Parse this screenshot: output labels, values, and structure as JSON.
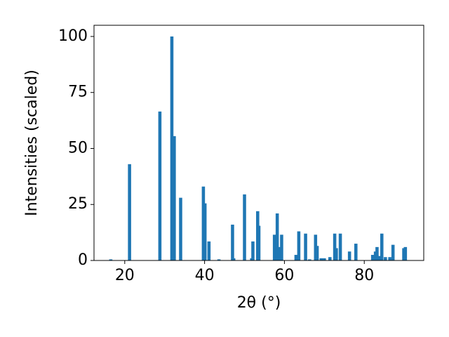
{
  "chart_data": {
    "type": "bar",
    "x": [
      16.5,
      21.2,
      28.8,
      31.8,
      32.4,
      34.0,
      39.7,
      40.1,
      41.1,
      43.6,
      47.0,
      47.3,
      50.0,
      51.8,
      52.1,
      53.3,
      53.6,
      57.5,
      58.2,
      58.6,
      59.3,
      62.9,
      63.6,
      65.3,
      66.3,
      67.8,
      68.2,
      69.2,
      70.0,
      71.4,
      72.6,
      73.0,
      74.0,
      76.3,
      77.9,
      82.1,
      82.8,
      83.2,
      83.7,
      84.4,
      85.3,
      86.4,
      87.2,
      89.9,
      90.3
    ],
    "values": [
      0.5,
      43,
      66.5,
      100,
      55.5,
      28,
      33,
      25.5,
      8.5,
      0.5,
      16,
      1,
      29.5,
      1,
      8.5,
      22,
      15.5,
      11.5,
      21,
      6,
      11.5,
      2.5,
      13,
      12,
      0.5,
      11.5,
      6.5,
      1,
      1,
      1.5,
      12,
      5.5,
      12,
      4,
      7.5,
      2.5,
      4,
      6,
      2,
      12,
      1.5,
      1.5,
      7,
      5.5,
      6
    ],
    "color": "#1f77b4",
    "xlabel": "2θ (°)",
    "ylabel": "Intensities (scaled)",
    "xlim": [
      12.3,
      94.9
    ],
    "xticks": [
      20,
      40,
      60,
      80
    ],
    "ylim": [
      0,
      105
    ],
    "yticks": [
      0,
      25,
      50,
      75,
      100
    ],
    "grid": false
  }
}
